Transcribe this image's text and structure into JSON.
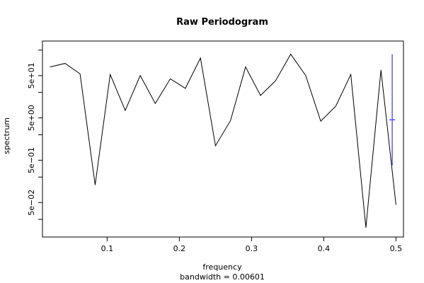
{
  "chart_data": {
    "type": "line",
    "title": "Raw Periodogram",
    "xlabel": "frequency",
    "ylabel": "spectrum",
    "sub": "bandwidth = 0.00601",
    "log_y": true,
    "xlim": [
      0.0104,
      0.5104
    ],
    "ylim": [
      0.00765,
      328
    ],
    "x_ticks": [
      0.1,
      0.2,
      0.3,
      0.4,
      0.5
    ],
    "x_tick_labels": [
      "0.1",
      "0.2",
      "0.3",
      "0.4",
      "0.5"
    ],
    "y_ticks": [
      0.05,
      0.5,
      5,
      50
    ],
    "y_tick_labels": [
      "5e−02",
      "5e−01",
      "5e+00",
      "5e+01"
    ],
    "y_minor_ticks": [
      0.02,
      0.2,
      2,
      20,
      200
    ],
    "line_color": "#000000",
    "ci_color": "#3333ff",
    "ci_bar": {
      "x": 0.4948,
      "lower": 0.38,
      "upper": 160,
      "center": 4.5
    },
    "series": [
      {
        "x": [
          0.0208,
          0.0417,
          0.0625,
          0.0833,
          0.1042,
          0.125,
          0.1458,
          0.1667,
          0.1875,
          0.2083,
          0.2292,
          0.25,
          0.2708,
          0.2917,
          0.3125,
          0.3333,
          0.3542,
          0.375,
          0.3958,
          0.4167,
          0.4375,
          0.4583,
          0.4792,
          0.5
        ],
        "y": [
          80,
          97,
          55,
          0.13,
          53,
          7.5,
          50,
          11,
          42,
          25,
          130,
          1.1,
          4.3,
          80,
          17,
          38,
          160,
          50,
          4.2,
          9.5,
          53,
          0.0127,
          68,
          0.044
        ]
      }
    ]
  }
}
